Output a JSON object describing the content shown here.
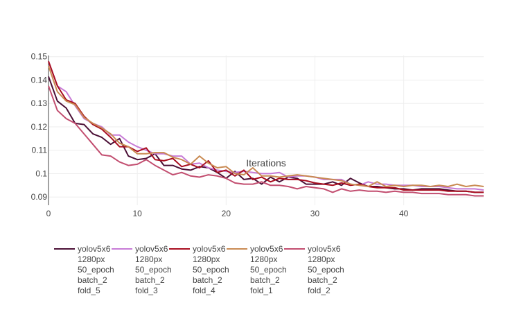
{
  "chart_data": {
    "type": "line",
    "title": "",
    "xlabel": "Iterations",
    "ylabel": "",
    "xlim": [
      0,
      49
    ],
    "ylim": [
      0.0865,
      0.1505
    ],
    "x_ticks": [
      "0",
      "10",
      "20",
      "30",
      "40"
    ],
    "y_ticks": [
      "0.09",
      "0.1",
      "0.11",
      "0.12",
      "0.13",
      "0.14",
      "0.15"
    ],
    "x_tick_values": [
      0,
      10,
      20,
      30,
      40
    ],
    "y_tick_values": [
      0.09,
      0.1,
      0.11,
      0.12,
      0.13,
      0.14,
      0.15
    ],
    "grid": true,
    "legend_position": "bottom",
    "x": [
      0,
      1,
      2,
      3,
      4,
      5,
      6,
      7,
      8,
      9,
      10,
      11,
      12,
      13,
      14,
      15,
      16,
      17,
      18,
      19,
      20,
      21,
      22,
      23,
      24,
      25,
      26,
      27,
      28,
      29,
      30,
      31,
      32,
      33,
      34,
      35,
      36,
      37,
      38,
      39,
      40,
      41,
      42,
      43,
      44,
      45,
      46,
      47,
      48,
      49
    ],
    "series": [
      {
        "name": "yolov5x6\n1280px\n50_epoch\nbatch_2\nfold_5",
        "color": "#4a0f35",
        "values": [
          0.1415,
          0.131,
          0.128,
          0.1215,
          0.121,
          0.117,
          0.1155,
          0.1125,
          0.115,
          0.1075,
          0.106,
          0.1065,
          0.1085,
          0.1035,
          0.1035,
          0.102,
          0.1015,
          0.103,
          0.1025,
          0.1005,
          0.098,
          0.101,
          0.0975,
          0.098,
          0.0955,
          0.0985,
          0.0965,
          0.0985,
          0.098,
          0.0955,
          0.0955,
          0.0955,
          0.0965,
          0.095,
          0.098,
          0.096,
          0.0945,
          0.0945,
          0.094,
          0.0935,
          0.0935,
          0.093,
          0.0935,
          0.0935,
          0.0935,
          0.093,
          0.0925,
          0.0925,
          0.092,
          0.092
        ]
      },
      {
        "name": "yolov5x6\n1280px\n50_epoch\nbatch_2\nfold_3",
        "color": "#c77bd6",
        "values": [
          0.148,
          0.1375,
          0.135,
          0.129,
          0.1235,
          0.1215,
          0.12,
          0.1165,
          0.1165,
          0.1135,
          0.1115,
          0.11,
          0.1085,
          0.1085,
          0.1075,
          0.1075,
          0.104,
          0.1045,
          0.1025,
          0.1015,
          0.101,
          0.1005,
          0.101,
          0.1005,
          0.1,
          0.1,
          0.1005,
          0.0985,
          0.099,
          0.099,
          0.0985,
          0.0975,
          0.0975,
          0.0975,
          0.0955,
          0.095,
          0.0965,
          0.0955,
          0.0955,
          0.095,
          0.095,
          0.095,
          0.0945,
          0.0945,
          0.0945,
          0.094,
          0.0935,
          0.0935,
          0.0935,
          0.093
        ]
      },
      {
        "name": "yolov5x6\n1280px\n50_epoch\nbatch_2\nfold_4",
        "color": "#a80d1f",
        "values": [
          0.148,
          0.1375,
          0.1315,
          0.13,
          0.1245,
          0.121,
          0.119,
          0.1155,
          0.1115,
          0.1115,
          0.1095,
          0.111,
          0.106,
          0.1055,
          0.1065,
          0.103,
          0.104,
          0.1025,
          0.1055,
          0.1005,
          0.1015,
          0.099,
          0.1015,
          0.0975,
          0.0985,
          0.0965,
          0.098,
          0.0975,
          0.0975,
          0.097,
          0.096,
          0.0955,
          0.095,
          0.096,
          0.095,
          0.0955,
          0.0945,
          0.094,
          0.094,
          0.094,
          0.093,
          0.093,
          0.093,
          0.093,
          0.093,
          0.0925,
          0.0925,
          0.0925,
          0.092,
          0.092
        ]
      },
      {
        "name": "yolov5x6\n1280px\n50_epoch\nbatch_2\nfold_1",
        "color": "#c98a52",
        "values": [
          0.146,
          0.135,
          0.131,
          0.1295,
          0.124,
          0.1215,
          0.1195,
          0.117,
          0.113,
          0.1115,
          0.1085,
          0.1085,
          0.109,
          0.109,
          0.107,
          0.106,
          0.104,
          0.1075,
          0.1045,
          0.1025,
          0.103,
          0.1,
          0.0995,
          0.1025,
          0.099,
          0.099,
          0.0985,
          0.099,
          0.0995,
          0.099,
          0.0985,
          0.098,
          0.0975,
          0.097,
          0.0955,
          0.095,
          0.0945,
          0.0965,
          0.0945,
          0.095,
          0.0945,
          0.095,
          0.095,
          0.0945,
          0.095,
          0.0945,
          0.0955,
          0.0945,
          0.095,
          0.0945
        ]
      },
      {
        "name": "yolov5x6\n1280px\n50_epoch\nbatch_2\nfold_2",
        "color": "#c24d6f",
        "values": [
          0.1375,
          0.127,
          0.1235,
          0.1215,
          0.117,
          0.1125,
          0.108,
          0.1075,
          0.105,
          0.1035,
          0.104,
          0.106,
          0.1035,
          0.1015,
          0.0995,
          0.1005,
          0.099,
          0.0985,
          0.0995,
          0.099,
          0.098,
          0.096,
          0.0955,
          0.0955,
          0.0965,
          0.095,
          0.095,
          0.0945,
          0.0935,
          0.0945,
          0.094,
          0.0935,
          0.092,
          0.0935,
          0.0925,
          0.093,
          0.0925,
          0.0925,
          0.092,
          0.0925,
          0.092,
          0.092,
          0.0915,
          0.0915,
          0.0915,
          0.091,
          0.091,
          0.091,
          0.0905,
          0.0905
        ]
      }
    ]
  }
}
